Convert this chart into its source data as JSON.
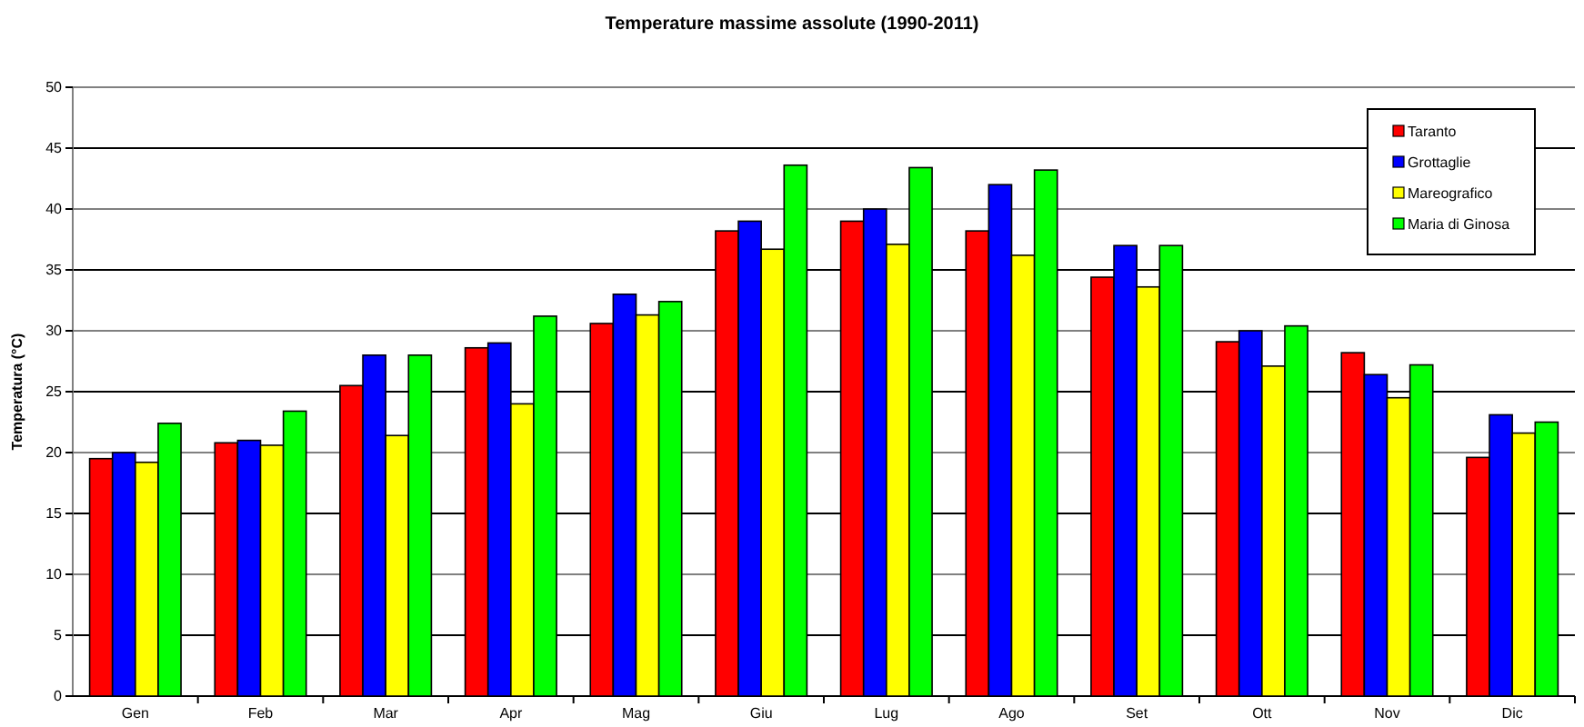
{
  "chart_data": {
    "type": "bar",
    "title": "Temperature massime assolute (1990-2011)",
    "ylabel": "Temperatura (°C)",
    "categories": [
      "Gen",
      "Feb",
      "Mar",
      "Apr",
      "Mag",
      "Giu",
      "Lug",
      "Ago",
      "Set",
      "Ott",
      "Nov",
      "Dic"
    ],
    "series": [
      {
        "name": "Taranto",
        "color": "#ff0000",
        "values": [
          19.5,
          20.8,
          25.5,
          28.6,
          30.6,
          38.2,
          39,
          38.2,
          34.4,
          29.1,
          28.2,
          19.6
        ]
      },
      {
        "name": "Grottaglie",
        "color": "#0000ff",
        "values": [
          20,
          21,
          28,
          29,
          33,
          39,
          40,
          42,
          37,
          30,
          26.4,
          23.1
        ]
      },
      {
        "name": "Mareografico",
        "color": "#ffff00",
        "values": [
          19.2,
          20.6,
          21.4,
          24,
          31.3,
          36.7,
          37.1,
          36.2,
          33.6,
          27.1,
          24.5,
          21.6
        ]
      },
      {
        "name": "Maria di Ginosa",
        "color": "#00ff00",
        "values": [
          22.4,
          23.4,
          28,
          31.2,
          32.4,
          43.6,
          43.4,
          43.2,
          37,
          30.4,
          27.2,
          22.5
        ]
      }
    ],
    "ylim": [
      0,
      50
    ],
    "yticks": [
      0,
      5,
      10,
      15,
      20,
      25,
      30,
      35,
      40,
      45,
      50
    ],
    "grid": "y",
    "legend": "top right"
  }
}
